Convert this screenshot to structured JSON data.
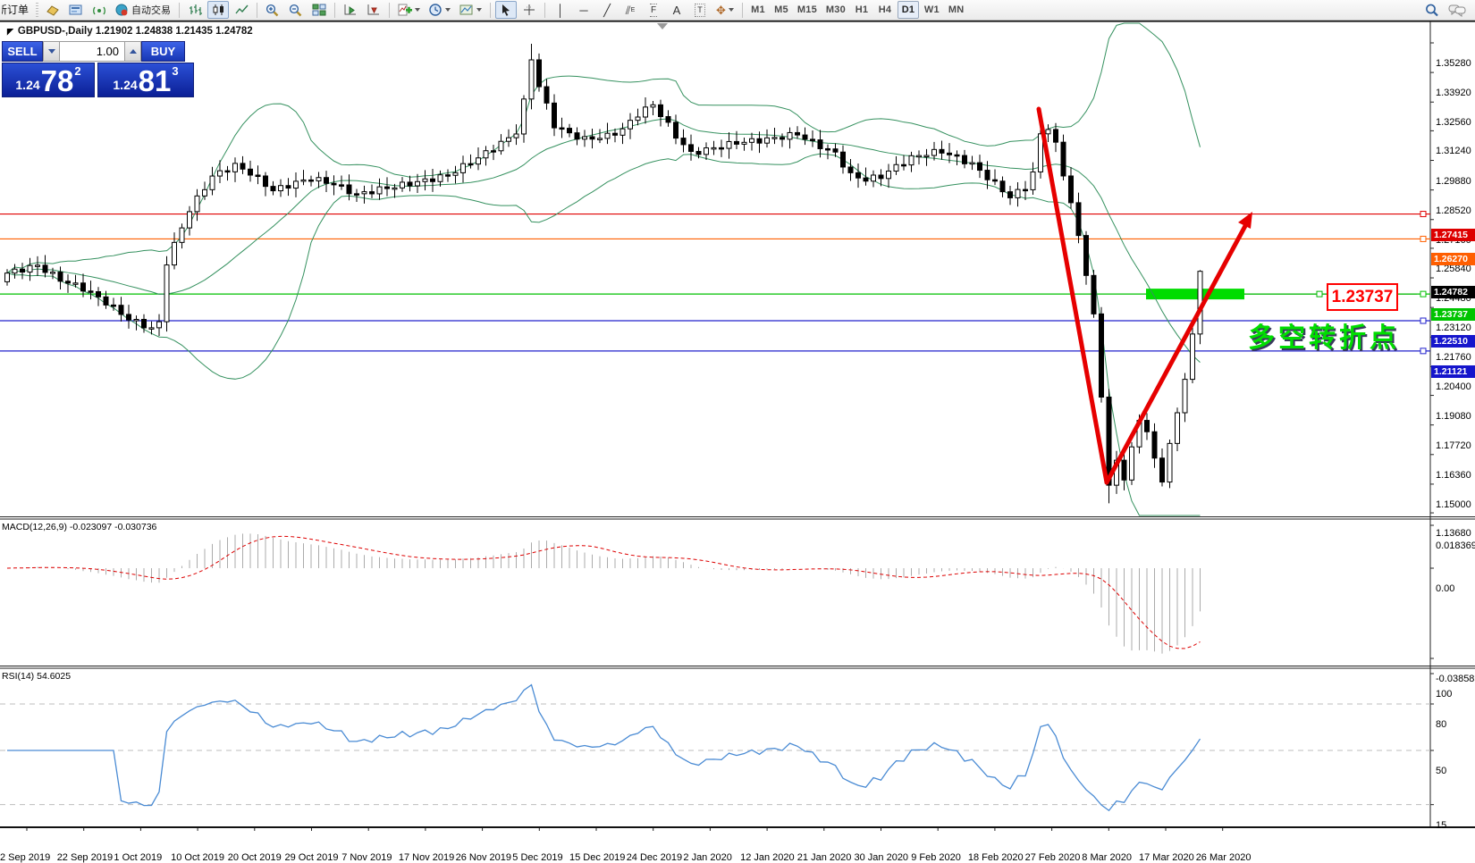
{
  "toolbar": {
    "new_order_label": "新订单",
    "autotrade_label": "自动交易",
    "timeframes": [
      "M1",
      "M5",
      "M15",
      "M30",
      "H1",
      "H4",
      "D1",
      "W1",
      "MN"
    ],
    "active_timeframe": "D1",
    "icons": {
      "vertical_line": "│",
      "horizontal_line": "─",
      "trendline": "╱",
      "equidistant_channel": "⫽",
      "fibonacci": "F",
      "text": "A",
      "text_label": "T",
      "arrows": "✥",
      "cursor": "➤",
      "crosshair": "+"
    }
  },
  "chart": {
    "title": "GBPUSD-,Daily  1.21902 1.24838 1.21435 1.24782",
    "symbol": "GBPUSD-",
    "period": "Daily"
  },
  "trade_panel": {
    "sell_label": "SELL",
    "buy_label": "BUY",
    "volume": "1.00",
    "sell_price": {
      "small": "1.24",
      "big": "78",
      "sup": "2"
    },
    "buy_price": {
      "small": "1.24",
      "big": "81",
      "sup": "3"
    }
  },
  "annotations": {
    "price_callout": {
      "text": "1.23737",
      "color": "#ff0000"
    },
    "cn_note": {
      "text": "多空转折点",
      "color": "#00dd00"
    },
    "green_zone": {
      "price": 1.23737,
      "color": "#00dc00"
    },
    "v_arrow_color": "#e60000"
  },
  "chart_data": {
    "type": "candlestick",
    "symbol": "GBPUSD-",
    "timeframe": "Daily",
    "title": "GBPUSD-,Daily",
    "ylim": [
      1.1368,
      1.3528
    ],
    "last_ohlc": {
      "open": "1.21902",
      "high": "1.24838",
      "low": "1.21435",
      "close": "1.24782"
    },
    "price_axis_ticks": [
      "1.35280",
      "1.33920",
      "1.32560",
      "1.31240",
      "1.29880",
      "1.28520",
      "1.27160",
      "1.25840",
      "1.24480",
      "1.23120",
      "1.21760",
      "1.20400",
      "1.19080",
      "1.17720",
      "1.16360",
      "1.15000",
      "1.13680"
    ],
    "price_tags": [
      {
        "label": "1.27415",
        "value": 1.27415,
        "bg": "#dd0000"
      },
      {
        "label": "1.26270",
        "value": 1.2627,
        "bg": "#ff5e00"
      },
      {
        "label": "1.24782",
        "value": 1.24782,
        "bg": "#000000"
      },
      {
        "label": "1.23737",
        "value": 1.23737,
        "bg": "#00c400"
      },
      {
        "label": "1.22510",
        "value": 1.2251,
        "bg": "#1515cc"
      },
      {
        "label": "1.21121",
        "value": 1.21121,
        "bg": "#1515cc"
      }
    ],
    "hlines": [
      {
        "value": 1.27415,
        "color": "#e00000"
      },
      {
        "value": 1.2627,
        "color": "#ff6000"
      },
      {
        "value": 1.23737,
        "color": "#00c000"
      },
      {
        "value": 1.2251,
        "color": "#2222cc"
      },
      {
        "value": 1.21121,
        "color": "#2222cc"
      }
    ],
    "candle_count": 158,
    "close_anchors": [
      [
        0,
        1.247
      ],
      [
        4,
        1.2505
      ],
      [
        7,
        1.244
      ],
      [
        10,
        1.24
      ],
      [
        13,
        1.2335
      ],
      [
        16,
        1.226
      ],
      [
        19,
        1.2215
      ],
      [
        20,
        1.224
      ],
      [
        21,
        1.252
      ],
      [
        24,
        1.276
      ],
      [
        27,
        1.2915
      ],
      [
        30,
        1.2965
      ],
      [
        32,
        1.293
      ],
      [
        35,
        1.285
      ],
      [
        38,
        1.2885
      ],
      [
        40,
        1.2905
      ],
      [
        43,
        1.288
      ],
      [
        46,
        1.283
      ],
      [
        49,
        1.2855
      ],
      [
        52,
        1.2875
      ],
      [
        55,
        1.2895
      ],
      [
        58,
        1.292
      ],
      [
        60,
        1.296
      ],
      [
        62,
        1.3
      ],
      [
        64,
        1.3045
      ],
      [
        66,
        1.309
      ],
      [
        67,
        1.312
      ],
      [
        68,
        1.327
      ],
      [
        69,
        1.345
      ],
      [
        70,
        1.333
      ],
      [
        72,
        1.315
      ],
      [
        74,
        1.311
      ],
      [
        76,
        1.3085
      ],
      [
        79,
        1.31
      ],
      [
        81,
        1.313
      ],
      [
        83,
        1.32
      ],
      [
        85,
        1.3245
      ],
      [
        87,
        1.315
      ],
      [
        88,
        1.31
      ],
      [
        90,
        1.302
      ],
      [
        93,
        1.3045
      ],
      [
        96,
        1.307
      ],
      [
        99,
        1.308
      ],
      [
        101,
        1.309
      ],
      [
        104,
        1.311
      ],
      [
        106,
        1.307
      ],
      [
        109,
        1.302
      ],
      [
        111,
        1.292
      ],
      [
        113,
        1.29
      ],
      [
        115,
        1.2915
      ],
      [
        117,
        1.296
      ],
      [
        119,
        1.3
      ],
      [
        121,
        1.302
      ],
      [
        123,
        1.303
      ],
      [
        125,
        1.3
      ],
      [
        127,
        1.297
      ],
      [
        130,
        1.288
      ],
      [
        132,
        1.282
      ],
      [
        134,
        1.2865
      ],
      [
        135,
        1.293
      ],
      [
        136,
        1.311
      ],
      [
        137,
        1.313
      ],
      [
        138,
        1.306
      ],
      [
        139,
        1.292
      ],
      [
        140,
        1.28
      ],
      [
        141,
        1.263
      ],
      [
        142,
        1.247
      ],
      [
        143,
        1.228
      ],
      [
        144,
        1.19
      ],
      [
        145,
        1.1495
      ],
      [
        146,
        1.16
      ],
      [
        147,
        1.152
      ],
      [
        148,
        1.168
      ],
      [
        149,
        1.178
      ],
      [
        150,
        1.175
      ],
      [
        151,
        1.162
      ],
      [
        152,
        1.15
      ],
      [
        153,
        1.17
      ],
      [
        154,
        1.182
      ],
      [
        155,
        1.198
      ],
      [
        156,
        1.219
      ],
      [
        157,
        1.24782
      ]
    ],
    "indicators": {
      "bollinger": {
        "period": 20,
        "deviation": 2,
        "color": "#35915f"
      },
      "macd": {
        "label": "MACD(12,26,9)",
        "main": "-0.023097",
        "signal": "-0.030736",
        "axis_ticks": [
          "0.018369",
          "0.00",
          "-0.038585"
        ],
        "histogram_color": "#ababab",
        "signal_color": "#dd0000"
      },
      "rsi": {
        "label": "RSI(14)",
        "value": "54.6025",
        "axis_ticks": [
          "100",
          "80",
          "50",
          "15"
        ],
        "levels": [
          80,
          50,
          15
        ],
        "color": "#4a8bd4"
      }
    },
    "x_axis_dates": [
      "2 Sep 2019",
      "22 Sep 2019",
      "1 Oct 2019",
      "10 Oct 2019",
      "20 Oct 2019",
      "29 Oct 2019",
      "7 Nov 2019",
      "17 Nov 2019",
      "26 Nov 2019",
      "5 Dec 2019",
      "15 Dec 2019",
      "24 Dec 2019",
      "2 Jan 2020",
      "12 Jan 2020",
      "21 Jan 2020",
      "30 Jan 2020",
      "9 Feb 2020",
      "18 Feb 2020",
      "27 Feb 2020",
      "8 Mar 2020",
      "17 Mar 2020",
      "26 Mar 2020"
    ]
  }
}
